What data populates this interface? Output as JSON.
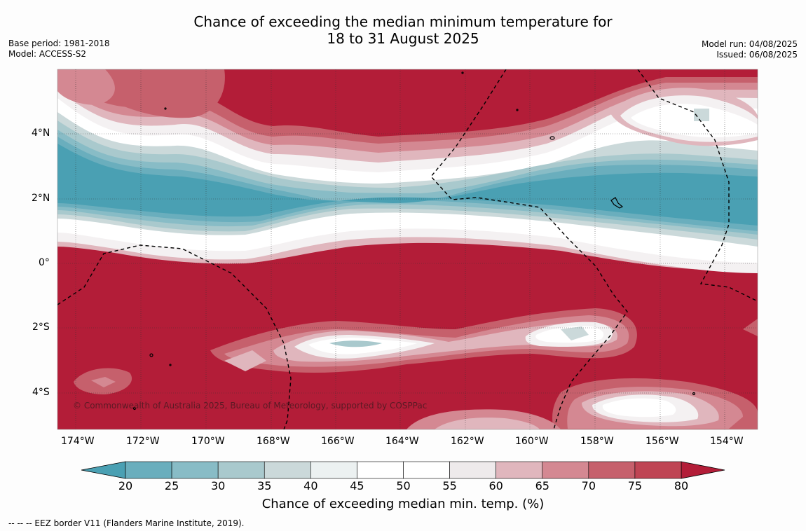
{
  "title": {
    "line1": "Chance of exceeding the median minimum temperature for",
    "line2": "18 to 31 August 2025"
  },
  "meta_left": {
    "line1": "Base period: 1981-2018",
    "line2": "Model: ACCESS-S2"
  },
  "meta_right": {
    "line1": "Model run: 04/08/2025",
    "line2": "Issued: 06/08/2025"
  },
  "map": {
    "lon_ticks": [
      "174°W",
      "172°W",
      "170°W",
      "168°W",
      "166°W",
      "164°W",
      "162°W",
      "160°W",
      "158°W",
      "156°W",
      "154°W"
    ],
    "lat_ticks": [
      "4°N",
      "2°N",
      "0°",
      "2°S",
      "4°S"
    ],
    "copyright": "© Commonwealth of Australia 2025, Bureau of Meteorology, supported by COSPPac",
    "colors": {
      "warm_max": "#b31d38",
      "cool_min": "#49a1b3",
      "border": "#000000"
    }
  },
  "colorbar": {
    "labels": [
      "20",
      "25",
      "30",
      "35",
      "40",
      "45",
      "50",
      "55",
      "60",
      "65",
      "70",
      "75",
      "80"
    ],
    "colors": [
      "#4aa0b3",
      "#6aaebd",
      "#88bcc6",
      "#a9c9cd",
      "#cbd9da",
      "#ecf1f1",
      "#ffffff",
      "#ffffff",
      "#eeeaeb",
      "#e0b6bd",
      "#d48892",
      "#c6606c",
      "#bf4554",
      "#b31d38"
    ],
    "title": "Chance of exceeding median min. temp. (%)"
  },
  "footer": "--  --  -- EEZ border V11 (Flanders Marine Institute, 2019)."
}
